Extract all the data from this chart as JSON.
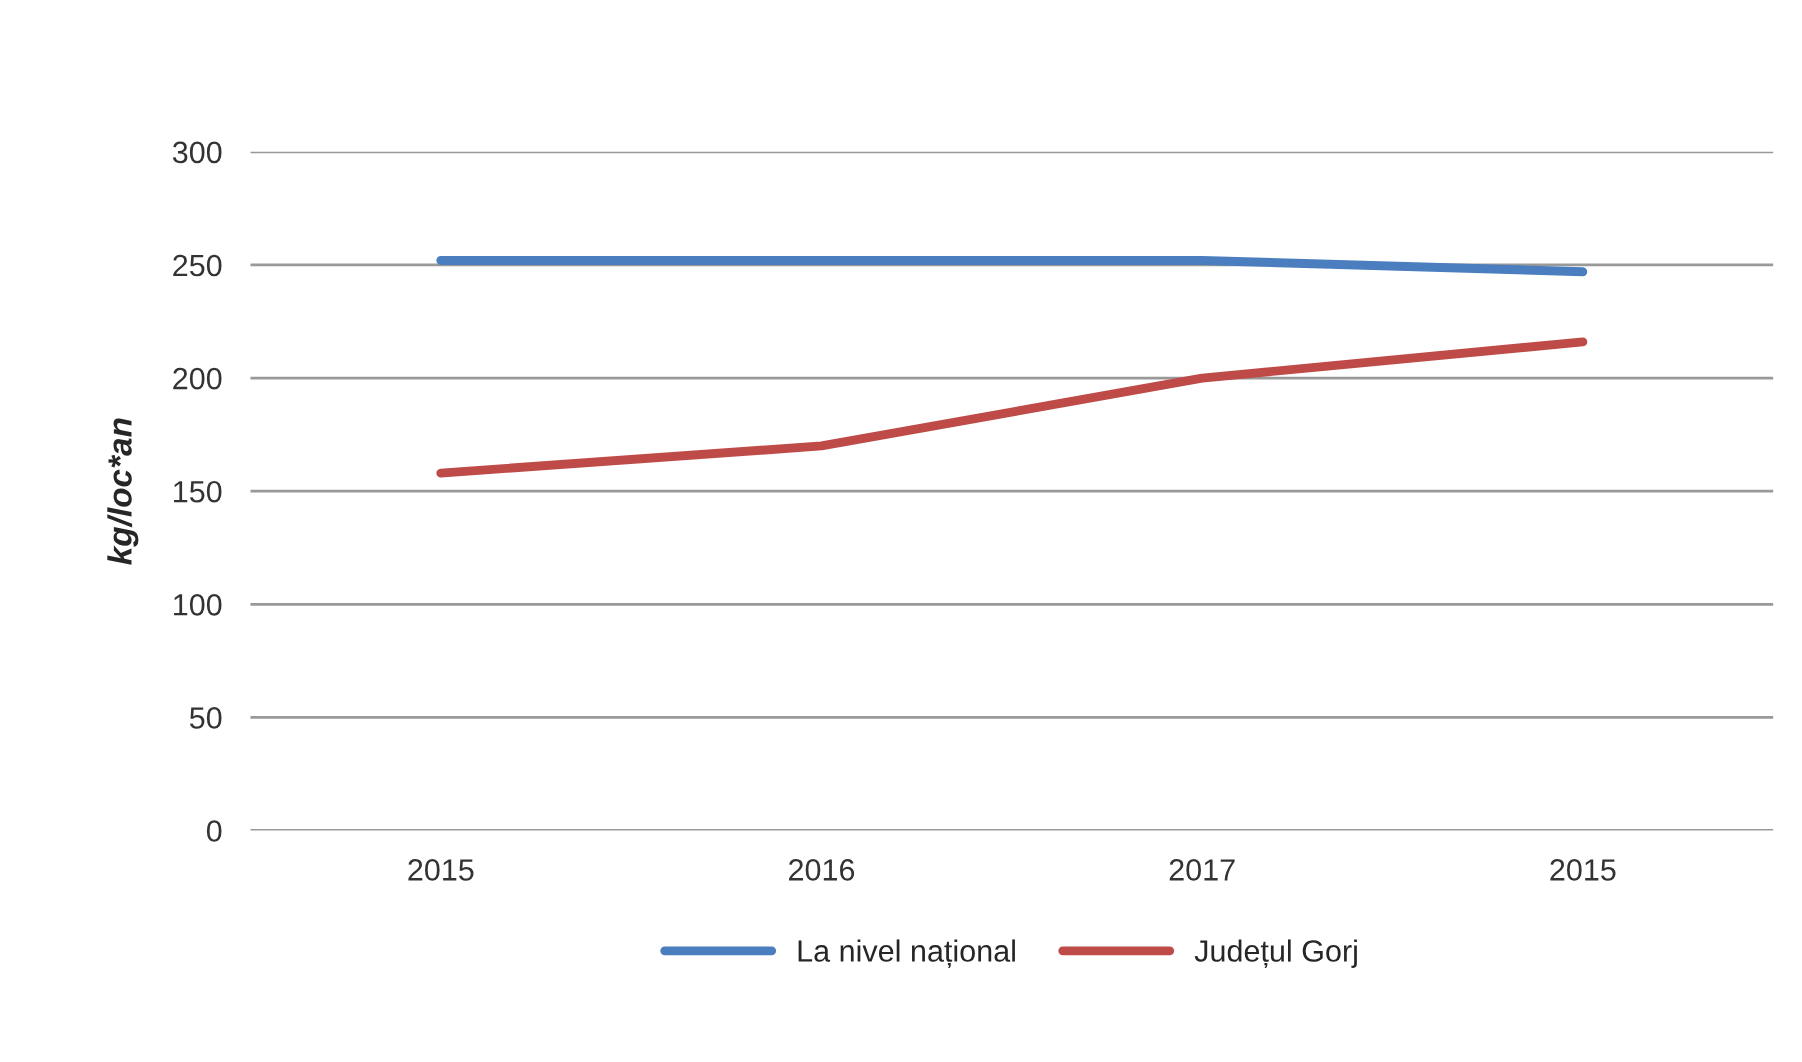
{
  "chart_data": {
    "type": "line",
    "ylabel": "kg/loc*an",
    "categories": [
      "2015",
      "2016",
      "2017",
      "2015"
    ],
    "series": [
      {
        "name": "La nivel național",
        "color": "#4a7ebf",
        "values": [
          252,
          252,
          252,
          247
        ]
      },
      {
        "name": "Județul Gorj",
        "color": "#be4b48",
        "values": [
          158,
          170,
          200,
          216
        ]
      }
    ],
    "ylim": [
      0,
      300
    ],
    "yticks": [
      0,
      50,
      100,
      150,
      200,
      250,
      300
    ],
    "grid": "y",
    "legend": "bottom",
    "marker": "none",
    "line_style": "solid"
  }
}
